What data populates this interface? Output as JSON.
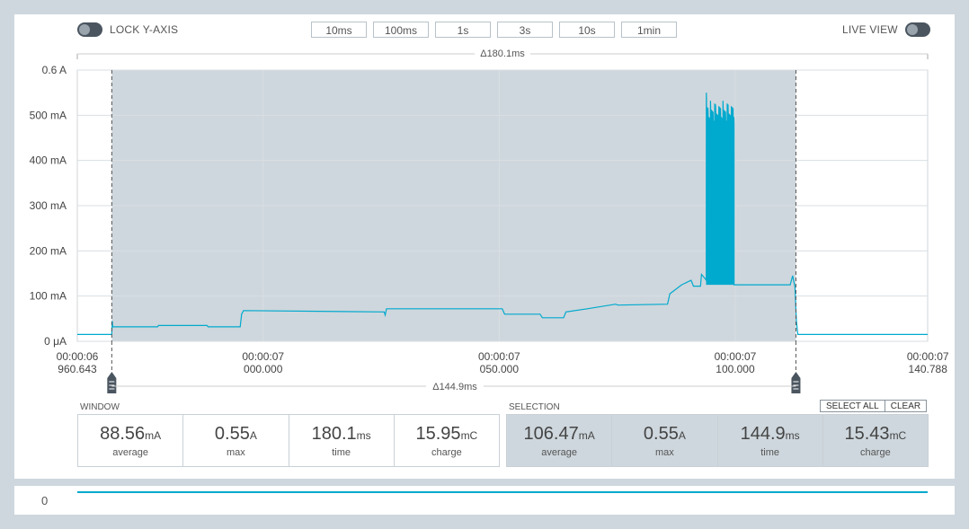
{
  "toggles": {
    "lock_y_axis": "LOCK Y-AXIS",
    "live_view": "LIVE VIEW"
  },
  "zoom_buttons": [
    "10ms",
    "100ms",
    "1s",
    "3s",
    "10s",
    "1min"
  ],
  "chart_data": {
    "type": "line",
    "window_delta": "Δ180.1ms",
    "selection_delta": "Δ144.9ms",
    "y_ticks": [
      "0 μA",
      "100 mA",
      "200 mA",
      "300 mA",
      "400 mA",
      "500 mA",
      "0.6 A"
    ],
    "ylim": [
      0,
      600
    ],
    "y_unit": "mA",
    "x_ticks": [
      {
        "line1": "00:00:06",
        "line2": "960.643"
      },
      {
        "line1": "00:00:07",
        "line2": "000.000"
      },
      {
        "line1": "00:00:07",
        "line2": "050.000"
      },
      {
        "line1": "00:00:07",
        "line2": "100.000"
      },
      {
        "line1": "00:00:07",
        "line2": "140.788"
      }
    ],
    "xlim_ms": [
      0,
      180.1
    ],
    "x_tick_ms": [
      0,
      39.357,
      89.357,
      139.357,
      180.145
    ],
    "selection_ms": [
      7.3,
      152.2
    ],
    "series": [
      {
        "color": "#00a9ce",
        "points": [
          [
            0,
            15
          ],
          [
            7.3,
            15
          ],
          [
            7.4,
            45
          ],
          [
            7.5,
            32
          ],
          [
            17,
            32
          ],
          [
            17.2,
            35
          ],
          [
            27.5,
            35
          ],
          [
            27.7,
            32
          ],
          [
            34.5,
            32
          ],
          [
            34.8,
            60
          ],
          [
            35.2,
            68
          ],
          [
            65,
            65
          ],
          [
            65.2,
            58
          ],
          [
            65.5,
            72
          ],
          [
            80,
            72
          ],
          [
            90,
            72
          ],
          [
            90.5,
            60
          ],
          [
            98,
            60
          ],
          [
            98.5,
            52
          ],
          [
            103,
            52
          ],
          [
            103.5,
            65
          ],
          [
            108,
            72
          ],
          [
            114,
            82
          ],
          [
            114.5,
            80
          ],
          [
            125,
            82
          ],
          [
            125.5,
            105
          ],
          [
            128,
            125
          ],
          [
            130,
            135
          ],
          [
            130.5,
            122
          ],
          [
            132,
            122
          ],
          [
            132.2,
            148
          ],
          [
            133,
            138
          ],
          [
            145,
            125
          ],
          [
            151,
            125
          ],
          [
            151.5,
            145
          ],
          [
            152,
            120
          ],
          [
            152.3,
            45
          ],
          [
            152.6,
            15
          ],
          [
            180.1,
            15
          ]
        ],
        "burst": {
          "start_ms": 133.2,
          "end_ms": 139.2,
          "peak_ma": 520,
          "base_ma": 125,
          "peak_first_ma": 550
        }
      }
    ]
  },
  "window": {
    "label": "WINDOW",
    "stats": [
      {
        "value": "88.56",
        "unit": "mA",
        "caption": "average"
      },
      {
        "value": "0.55",
        "unit": "A",
        "caption": "max"
      },
      {
        "value": "180.1",
        "unit": "ms",
        "caption": "time"
      },
      {
        "value": "15.95",
        "unit": "mC",
        "caption": "charge"
      }
    ]
  },
  "selection": {
    "label": "SELECTION",
    "select_all": "SELECT ALL",
    "clear": "CLEAR",
    "stats": [
      {
        "value": "106.47",
        "unit": "mA",
        "caption": "average"
      },
      {
        "value": "0.55",
        "unit": "A",
        "caption": "max"
      },
      {
        "value": "144.9",
        "unit": "ms",
        "caption": "time"
      },
      {
        "value": "15.43",
        "unit": "mC",
        "caption": "charge"
      }
    ]
  },
  "minimap": {
    "zero_label": "0"
  }
}
